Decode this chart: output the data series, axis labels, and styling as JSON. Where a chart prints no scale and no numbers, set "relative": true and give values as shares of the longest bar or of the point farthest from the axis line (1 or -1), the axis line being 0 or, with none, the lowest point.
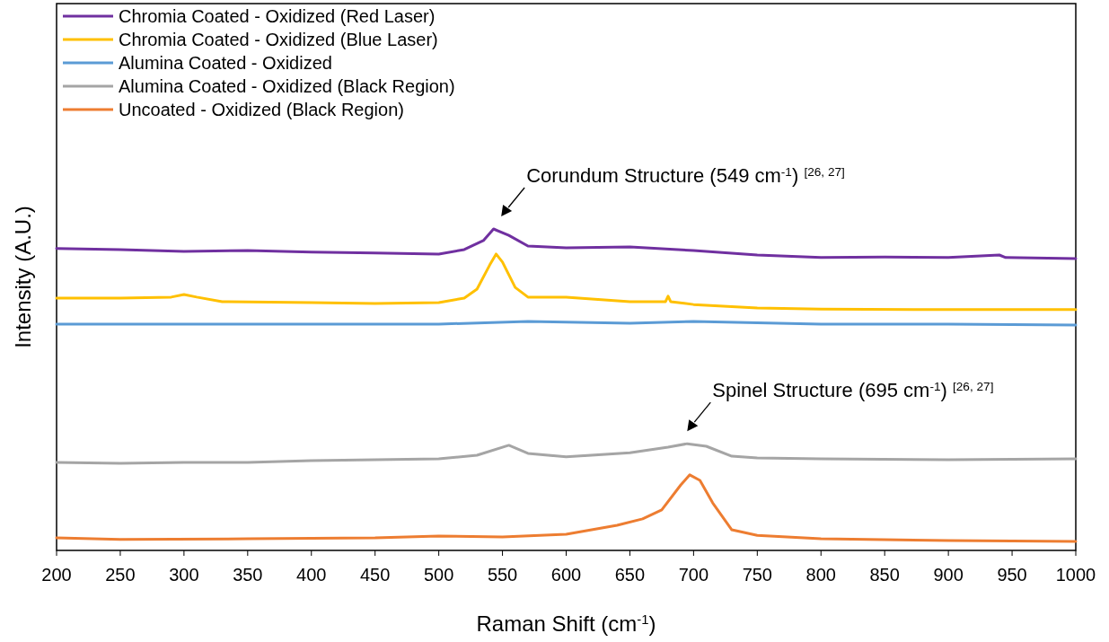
{
  "chart_data": {
    "type": "line",
    "relative": true,
    "xlabel": "Raman Shift (cm$^{-1}$)",
    "ylabel": "Intensity (A.U.)",
    "xlim": [
      200,
      1000
    ],
    "xticks": [
      200,
      250,
      300,
      350,
      400,
      450,
      500,
      550,
      600,
      650,
      700,
      750,
      800,
      850,
      900,
      950,
      1000
    ],
    "legend": "top left",
    "grid": false,
    "marker": "none",
    "line_style": "solid",
    "annotations": [
      {
        "text": "Corundum Structure (549 cm$^{-1}$) $^{[26, 27]}$",
        "x": 549,
        "y": 1.0
      },
      {
        "text": "Spinel Structure (695 cm$^{-1}$) $^{[26, 27]}$",
        "x": 695,
        "y": 0.332
      }
    ],
    "series": [
      {
        "name": "Chromia Coated - Oxidized (Red Laser)",
        "color": "#7030a0",
        "x": [
          200,
          250,
          300,
          350,
          400,
          450,
          500,
          520,
          535,
          543,
          555,
          570,
          600,
          650,
          700,
          750,
          800,
          850,
          900,
          940,
          945,
          1000
        ],
        "values": [
          0.939,
          0.936,
          0.93,
          0.933,
          0.928,
          0.925,
          0.922,
          0.936,
          0.964,
          1.0,
          0.98,
          0.947,
          0.941,
          0.944,
          0.933,
          0.919,
          0.911,
          0.913,
          0.911,
          0.919,
          0.911,
          0.908
        ]
      },
      {
        "name": "Chromia Coated - Oxidized (Blue Laser)",
        "color": "#ffc000",
        "x": [
          200,
          250,
          290,
          300,
          310,
          330,
          400,
          450,
          500,
          520,
          530,
          540,
          545,
          550,
          560,
          570,
          600,
          650,
          678,
          680,
          682,
          700,
          750,
          800,
          900,
          1000
        ],
        "values": [
          0.785,
          0.785,
          0.788,
          0.796,
          0.788,
          0.774,
          0.771,
          0.768,
          0.771,
          0.785,
          0.813,
          0.888,
          0.922,
          0.897,
          0.818,
          0.788,
          0.788,
          0.774,
          0.774,
          0.791,
          0.774,
          0.765,
          0.754,
          0.751,
          0.749,
          0.749
        ]
      },
      {
        "name": "Alumina Coated - Oxidized",
        "color": "#5b9bd5",
        "x": [
          200,
          300,
          400,
          500,
          570,
          650,
          700,
          800,
          900,
          1000
        ],
        "values": [
          0.704,
          0.704,
          0.704,
          0.704,
          0.712,
          0.707,
          0.712,
          0.704,
          0.704,
          0.701
        ]
      },
      {
        "name": "Alumina Coated - Oxidized (Black Region)",
        "color": "#a5a5a5",
        "x": [
          200,
          250,
          300,
          350,
          400,
          450,
          500,
          530,
          555,
          570,
          600,
          650,
          680,
          695,
          710,
          730,
          750,
          800,
          900,
          1000
        ],
        "values": [
          0.274,
          0.271,
          0.274,
          0.274,
          0.279,
          0.282,
          0.285,
          0.296,
          0.327,
          0.302,
          0.291,
          0.304,
          0.321,
          0.332,
          0.324,
          0.293,
          0.288,
          0.285,
          0.282,
          0.285
        ]
      },
      {
        "name": "Uncoated - Oxidized (Black Region)",
        "color": "#ed7d31",
        "x": [
          200,
          250,
          350,
          450,
          500,
          550,
          600,
          640,
          660,
          675,
          690,
          697,
          705,
          715,
          730,
          750,
          800,
          900,
          1000
        ],
        "values": [
          0.039,
          0.034,
          0.036,
          0.039,
          0.045,
          0.042,
          0.05,
          0.078,
          0.098,
          0.126,
          0.204,
          0.235,
          0.218,
          0.148,
          0.064,
          0.047,
          0.036,
          0.031,
          0.028
        ]
      }
    ]
  }
}
